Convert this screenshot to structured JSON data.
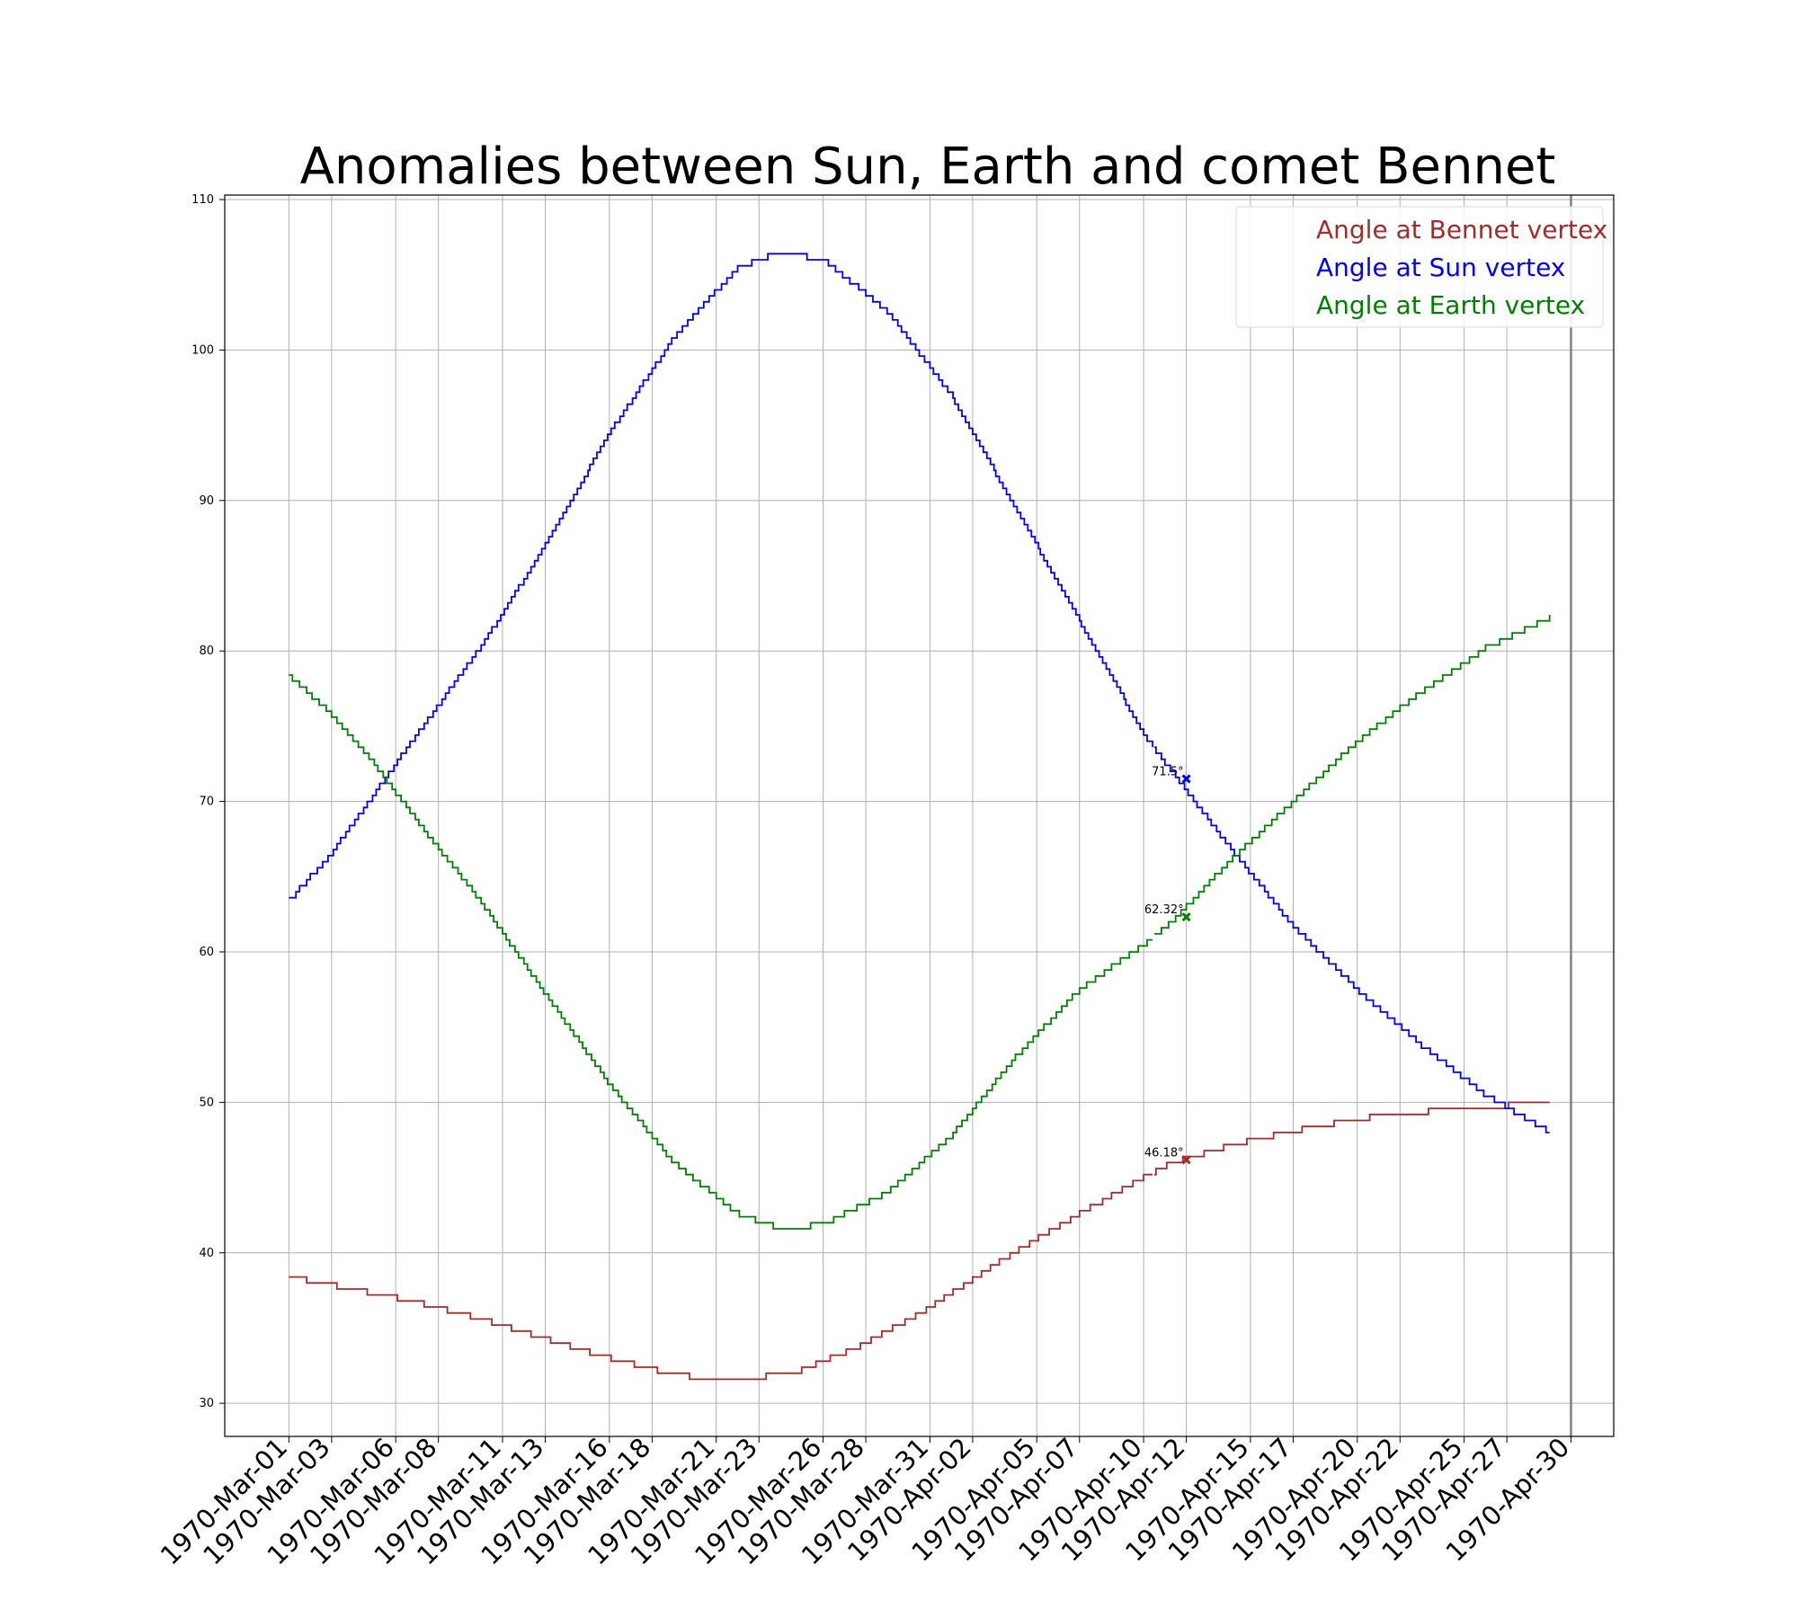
{
  "chart_data": {
    "type": "line",
    "title": "Anomalies between Sun, Earth and comet Bennet",
    "xlabel": "",
    "ylabel": "",
    "x_axis": "date",
    "xlim": [
      "1970-02-26",
      "1970-05-02"
    ],
    "ylim": [
      27.8,
      110.3
    ],
    "grid": true,
    "legend_position": "top-right",
    "y_ticks": [
      30,
      40,
      50,
      60,
      70,
      80,
      90,
      100,
      110
    ],
    "x_ticks": [
      "1970-03-01",
      "1970-03-03",
      "1970-03-06",
      "1970-03-08",
      "1970-03-11",
      "1970-03-13",
      "1970-03-16",
      "1970-03-18",
      "1970-03-21",
      "1970-03-23",
      "1970-03-26",
      "1970-03-28",
      "1970-03-31",
      "1970-04-02",
      "1970-04-05",
      "1970-04-07",
      "1970-04-10",
      "1970-04-12",
      "1970-04-15",
      "1970-04-17",
      "1970-04-20",
      "1970-04-22",
      "1970-04-25",
      "1970-04-27",
      "1970-04-30"
    ],
    "x_tick_labels": [
      "1970-Mar-01",
      "1970-Mar-03",
      "1970-Mar-06",
      "1970-Mar-08",
      "1970-Mar-11",
      "1970-Mar-13",
      "1970-Mar-16",
      "1970-Mar-18",
      "1970-Mar-21",
      "1970-Mar-23",
      "1970-Mar-26",
      "1970-Mar-28",
      "1970-Mar-31",
      "1970-Apr-02",
      "1970-Apr-05",
      "1970-Apr-07",
      "1970-Apr-10",
      "1970-Apr-12",
      "1970-Apr-15",
      "1970-Apr-17",
      "1970-Apr-20",
      "1970-Apr-22",
      "1970-Apr-25",
      "1970-Apr-27",
      "1970-Apr-30"
    ],
    "vline_date": "1970-04-30",
    "break_date": "1970-04-11",
    "series": [
      {
        "name": "Angle at Bennet vertex",
        "color": "#a52a2a",
        "points": [
          [
            "1970-03-01",
            38.4
          ],
          [
            "1970-03-04",
            37.6
          ],
          [
            "1970-03-07",
            36.7
          ],
          [
            "1970-03-10",
            35.6
          ],
          [
            "1970-03-13",
            34.3
          ],
          [
            "1970-03-16",
            33.0
          ],
          [
            "1970-03-19",
            31.9
          ],
          [
            "1970-03-22",
            31.5
          ],
          [
            "1970-03-25",
            32.2
          ],
          [
            "1970-03-28",
            34.0
          ],
          [
            "1970-03-31",
            36.4
          ],
          [
            "1970-04-03",
            39.2
          ],
          [
            "1970-04-06",
            41.8
          ],
          [
            "1970-04-09",
            44.2
          ],
          [
            "1970-04-11",
            45.8
          ],
          [
            "1970-04-12",
            46.3
          ],
          [
            "1970-04-15",
            47.5
          ],
          [
            "1970-04-18",
            48.4
          ],
          [
            "1970-04-21",
            49.1
          ],
          [
            "1970-04-24",
            49.5
          ],
          [
            "1970-04-27",
            49.8
          ],
          [
            "1970-04-29",
            49.9
          ]
        ]
      },
      {
        "name": "Angle at Sun vertex",
        "color": "#0000ff",
        "points": [
          [
            "1970-03-01",
            63.4
          ],
          [
            "1970-03-03",
            66.6
          ],
          [
            "1970-03-05",
            70.5
          ],
          [
            "1970-03-07",
            74.5
          ],
          [
            "1970-03-10",
            80.3
          ],
          [
            "1970-03-13",
            87.0
          ],
          [
            "1970-03-16",
            94.5
          ],
          [
            "1970-03-19",
            100.8
          ],
          [
            "1970-03-22",
            105.5
          ],
          [
            "1970-03-24",
            106.5
          ],
          [
            "1970-03-26",
            106.0
          ],
          [
            "1970-03-29",
            102.6
          ],
          [
            "1970-04-01",
            97.0
          ],
          [
            "1970-04-04",
            89.5
          ],
          [
            "1970-04-07",
            82.0
          ],
          [
            "1970-04-10",
            74.5
          ],
          [
            "1970-04-11",
            72.6
          ],
          [
            "1970-04-12",
            70.7
          ],
          [
            "1970-04-14",
            67.0
          ],
          [
            "1970-04-17",
            61.7
          ],
          [
            "1970-04-20",
            57.5
          ],
          [
            "1970-04-23",
            53.8
          ],
          [
            "1970-04-26",
            50.5
          ],
          [
            "1970-04-29",
            48.0
          ]
        ]
      },
      {
        "name": "Angle at Earth vertex",
        "color": "#008000",
        "points": [
          [
            "1970-03-01",
            78.4
          ],
          [
            "1970-03-03",
            75.8
          ],
          [
            "1970-03-05",
            72.5
          ],
          [
            "1970-03-07",
            68.7
          ],
          [
            "1970-03-10",
            63.3
          ],
          [
            "1970-03-13",
            57.2
          ],
          [
            "1970-03-16",
            51.2
          ],
          [
            "1970-03-19",
            46.0
          ],
          [
            "1970-03-22",
            42.6
          ],
          [
            "1970-03-24",
            41.6
          ],
          [
            "1970-03-26",
            41.9
          ],
          [
            "1970-03-29",
            44.0
          ],
          [
            "1970-04-01",
            47.8
          ],
          [
            "1970-04-04",
            53.0
          ],
          [
            "1970-04-07",
            57.5
          ],
          [
            "1970-04-10",
            60.5
          ],
          [
            "1970-04-11",
            61.6
          ],
          [
            "1970-04-12",
            63.0
          ],
          [
            "1970-04-14",
            66.0
          ],
          [
            "1970-04-17",
            70.0
          ],
          [
            "1970-04-20",
            74.0
          ],
          [
            "1970-04-23",
            77.3
          ],
          [
            "1970-04-26",
            80.2
          ],
          [
            "1970-04-29",
            82.2
          ]
        ]
      }
    ],
    "annotations": [
      {
        "date": "1970-04-12",
        "value": 71.5,
        "label": "71.5°",
        "color": "#0000ff"
      },
      {
        "date": "1970-04-12",
        "value": 62.32,
        "label": "62.32°",
        "color": "#008000"
      },
      {
        "date": "1970-04-12",
        "value": 46.18,
        "label": "46.18°",
        "color": "#a52a2a"
      }
    ]
  }
}
